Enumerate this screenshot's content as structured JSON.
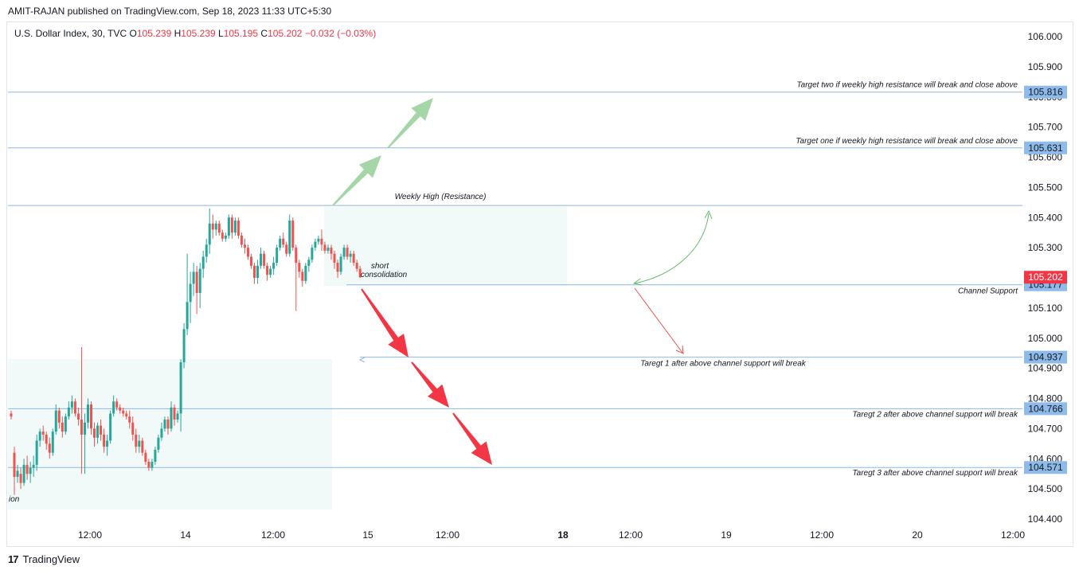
{
  "header": {
    "publisher": "AMIT-RAJAN published on TradingView.com, Sep 18, 2023 11:33 UTC+5:30"
  },
  "legend": {
    "symbol": "U.S. Dollar Index, 30, TVC",
    "o_label": "O",
    "o": "105.239",
    "h_label": "H",
    "h": "105.239",
    "l_label": "L",
    "l": "105.195",
    "c_label": "C",
    "c": "105.202",
    "change": "−0.032 (−0.03%)"
  },
  "footer": {
    "brand": "TradingView"
  },
  "colors": {
    "up": "#26a69a",
    "down": "#ef5350",
    "line": "#8fb8de",
    "tag_blue": "#8ebbe9",
    "tag_red": "#f23645",
    "arrow_green": "#a5d6a7",
    "arrow_red": "#f23645"
  },
  "chart_data": {
    "type": "candlestick",
    "y_ticks": [
      "106.000",
      "105.900",
      "105.800",
      "105.700",
      "105.600",
      "105.500",
      "105.400",
      "105.300",
      "105.200",
      "105.100",
      "105.000",
      "104.900",
      "104.800",
      "104.700",
      "104.600",
      "104.500",
      "104.400"
    ],
    "ylim": [
      104.4,
      106.0
    ],
    "x_ticks": [
      {
        "label": "12:00",
        "bold": false
      },
      {
        "label": "14",
        "bold": false
      },
      {
        "label": "12:00",
        "bold": false
      },
      {
        "label": "15",
        "bold": false
      },
      {
        "label": "12:00",
        "bold": false
      },
      {
        "label": "18",
        "bold": true
      },
      {
        "label": "12:00",
        "bold": false
      },
      {
        "label": "19",
        "bold": false
      },
      {
        "label": "12:00",
        "bold": false
      },
      {
        "label": "20",
        "bold": false
      },
      {
        "label": "12:00",
        "bold": false
      }
    ],
    "levels": [
      {
        "value": 105.816,
        "label": "105.816",
        "note": "Target two if weekly high resistance will break and close above"
      },
      {
        "value": 105.631,
        "label": "105.631",
        "note": "Target one if weekly high resistance will break and close above"
      },
      {
        "value": 105.44,
        "label": "",
        "note": "Weekly High (Resistance)"
      },
      {
        "value": 105.177,
        "label": "105.177",
        "note": "Channel Support"
      },
      {
        "value": 104.937,
        "label": "104.937",
        "note": "Taregt 1 after above channel support will break"
      },
      {
        "value": 104.766,
        "label": "104.766",
        "note": "Taregt 2 after above channel support will break"
      },
      {
        "value": 104.571,
        "label": "104.571",
        "note": "Taregt 3 after above channel support will break"
      }
    ],
    "last_price": {
      "value": 105.202,
      "label": "105.202"
    },
    "annotations": {
      "consolidation_line1": "short",
      "consolidation_line2": "consolidation",
      "left_box_label": "ion"
    },
    "candles": [
      {
        "o": 104.75,
        "h": 104.76,
        "l": 104.73,
        "c": 104.74
      },
      {
        "o": 104.62,
        "h": 104.64,
        "l": 104.48,
        "c": 104.54
      },
      {
        "o": 104.54,
        "h": 104.58,
        "l": 104.52,
        "c": 104.56
      },
      {
        "o": 104.55,
        "h": 104.57,
        "l": 104.5,
        "c": 104.52
      },
      {
        "o": 104.52,
        "h": 104.6,
        "l": 104.51,
        "c": 104.58
      },
      {
        "o": 104.58,
        "h": 104.61,
        "l": 104.53,
        "c": 104.55
      },
      {
        "o": 104.55,
        "h": 104.59,
        "l": 104.52,
        "c": 104.57
      },
      {
        "o": 104.57,
        "h": 104.61,
        "l": 104.54,
        "c": 104.58
      },
      {
        "o": 104.58,
        "h": 104.68,
        "l": 104.56,
        "c": 104.66
      },
      {
        "o": 104.66,
        "h": 104.7,
        "l": 104.64,
        "c": 104.69
      },
      {
        "o": 104.69,
        "h": 104.71,
        "l": 104.66,
        "c": 104.68
      },
      {
        "o": 104.68,
        "h": 104.69,
        "l": 104.63,
        "c": 104.65
      },
      {
        "o": 104.65,
        "h": 104.67,
        "l": 104.6,
        "c": 104.62
      },
      {
        "o": 104.62,
        "h": 104.7,
        "l": 104.61,
        "c": 104.69
      },
      {
        "o": 104.69,
        "h": 104.78,
        "l": 104.68,
        "c": 104.76
      },
      {
        "o": 104.76,
        "h": 104.77,
        "l": 104.7,
        "c": 104.72
      },
      {
        "o": 104.72,
        "h": 104.74,
        "l": 104.67,
        "c": 104.69
      },
      {
        "o": 104.69,
        "h": 104.75,
        "l": 104.68,
        "c": 104.74
      },
      {
        "o": 104.74,
        "h": 104.79,
        "l": 104.73,
        "c": 104.77
      },
      {
        "o": 104.77,
        "h": 104.81,
        "l": 104.75,
        "c": 104.79
      },
      {
        "o": 104.79,
        "h": 104.8,
        "l": 104.74,
        "c": 104.75
      },
      {
        "o": 104.75,
        "h": 104.77,
        "l": 104.71,
        "c": 104.73
      },
      {
        "o": 104.73,
        "h": 104.97,
        "l": 104.55,
        "c": 104.68
      },
      {
        "o": 104.68,
        "h": 104.75,
        "l": 104.55,
        "c": 104.72
      },
      {
        "o": 104.72,
        "h": 104.8,
        "l": 104.7,
        "c": 104.78
      },
      {
        "o": 104.78,
        "h": 104.79,
        "l": 104.68,
        "c": 104.7
      },
      {
        "o": 104.7,
        "h": 104.72,
        "l": 104.64,
        "c": 104.67
      },
      {
        "o": 104.67,
        "h": 104.72,
        "l": 104.65,
        "c": 104.71
      },
      {
        "o": 104.71,
        "h": 104.73,
        "l": 104.66,
        "c": 104.68
      },
      {
        "o": 104.68,
        "h": 104.7,
        "l": 104.62,
        "c": 104.64
      },
      {
        "o": 104.64,
        "h": 104.68,
        "l": 104.61,
        "c": 104.66
      },
      {
        "o": 104.66,
        "h": 104.76,
        "l": 104.65,
        "c": 104.75
      },
      {
        "o": 104.75,
        "h": 104.81,
        "l": 104.74,
        "c": 104.79
      },
      {
        "o": 104.79,
        "h": 104.8,
        "l": 104.76,
        "c": 104.77
      },
      {
        "o": 104.77,
        "h": 104.78,
        "l": 104.75,
        "c": 104.76
      },
      {
        "o": 104.76,
        "h": 104.77,
        "l": 104.74,
        "c": 104.75
      },
      {
        "o": 104.75,
        "h": 104.76,
        "l": 104.73,
        "c": 104.74
      },
      {
        "o": 104.74,
        "h": 104.76,
        "l": 104.7,
        "c": 104.72
      },
      {
        "o": 104.72,
        "h": 104.74,
        "l": 104.66,
        "c": 104.68
      },
      {
        "o": 104.68,
        "h": 104.7,
        "l": 104.62,
        "c": 104.64
      },
      {
        "o": 104.64,
        "h": 104.68,
        "l": 104.62,
        "c": 104.66
      },
      {
        "o": 104.66,
        "h": 104.67,
        "l": 104.61,
        "c": 104.62
      },
      {
        "o": 104.62,
        "h": 104.63,
        "l": 104.58,
        "c": 104.59
      },
      {
        "o": 104.59,
        "h": 104.6,
        "l": 104.56,
        "c": 104.57
      },
      {
        "o": 104.57,
        "h": 104.6,
        "l": 104.56,
        "c": 104.59
      },
      {
        "o": 104.59,
        "h": 104.64,
        "l": 104.58,
        "c": 104.63
      },
      {
        "o": 104.63,
        "h": 104.68,
        "l": 104.62,
        "c": 104.67
      },
      {
        "o": 104.67,
        "h": 104.72,
        "l": 104.66,
        "c": 104.7
      },
      {
        "o": 104.7,
        "h": 104.74,
        "l": 104.69,
        "c": 104.73
      },
      {
        "o": 104.73,
        "h": 104.74,
        "l": 104.68,
        "c": 104.7
      },
      {
        "o": 104.7,
        "h": 104.79,
        "l": 104.69,
        "c": 104.77
      },
      {
        "o": 104.77,
        "h": 104.78,
        "l": 104.71,
        "c": 104.73
      },
      {
        "o": 104.73,
        "h": 104.76,
        "l": 104.72,
        "c": 104.75
      },
      {
        "o": 104.75,
        "h": 104.93,
        "l": 104.69,
        "c": 104.92
      },
      {
        "o": 104.92,
        "h": 105.05,
        "l": 104.9,
        "c": 105.03
      },
      {
        "o": 105.03,
        "h": 105.28,
        "l": 105.01,
        "c": 105.12
      },
      {
        "o": 105.12,
        "h": 105.22,
        "l": 105.05,
        "c": 105.18
      },
      {
        "o": 105.18,
        "h": 105.25,
        "l": 105.14,
        "c": 105.22
      },
      {
        "o": 105.22,
        "h": 105.24,
        "l": 105.08,
        "c": 105.15
      },
      {
        "o": 105.15,
        "h": 105.25,
        "l": 105.1,
        "c": 105.23
      },
      {
        "o": 105.23,
        "h": 105.29,
        "l": 105.2,
        "c": 105.27
      },
      {
        "o": 105.27,
        "h": 105.33,
        "l": 105.25,
        "c": 105.31
      },
      {
        "o": 105.31,
        "h": 105.43,
        "l": 105.28,
        "c": 105.38
      },
      {
        "o": 105.38,
        "h": 105.41,
        "l": 105.33,
        "c": 105.36
      },
      {
        "o": 105.36,
        "h": 105.39,
        "l": 105.34,
        "c": 105.38
      },
      {
        "o": 105.38,
        "h": 105.39,
        "l": 105.34,
        "c": 105.35
      },
      {
        "o": 105.35,
        "h": 105.36,
        "l": 105.32,
        "c": 105.33
      },
      {
        "o": 105.33,
        "h": 105.35,
        "l": 105.32,
        "c": 105.34
      },
      {
        "o": 105.34,
        "h": 105.41,
        "l": 105.33,
        "c": 105.4
      },
      {
        "o": 105.4,
        "h": 105.41,
        "l": 105.33,
        "c": 105.35
      },
      {
        "o": 105.35,
        "h": 105.4,
        "l": 105.34,
        "c": 105.39
      },
      {
        "o": 105.39,
        "h": 105.4,
        "l": 105.33,
        "c": 105.34
      },
      {
        "o": 105.34,
        "h": 105.35,
        "l": 105.3,
        "c": 105.31
      },
      {
        "o": 105.31,
        "h": 105.33,
        "l": 105.28,
        "c": 105.3
      },
      {
        "o": 105.3,
        "h": 105.31,
        "l": 105.26,
        "c": 105.27
      },
      {
        "o": 105.27,
        "h": 105.28,
        "l": 105.23,
        "c": 105.24
      },
      {
        "o": 105.24,
        "h": 105.25,
        "l": 105.18,
        "c": 105.2
      },
      {
        "o": 105.2,
        "h": 105.26,
        "l": 105.18,
        "c": 105.24
      },
      {
        "o": 105.24,
        "h": 105.3,
        "l": 105.23,
        "c": 105.28
      },
      {
        "o": 105.28,
        "h": 105.29,
        "l": 105.23,
        "c": 105.24
      },
      {
        "o": 105.24,
        "h": 105.25,
        "l": 105.19,
        "c": 105.21
      },
      {
        "o": 105.21,
        "h": 105.24,
        "l": 105.2,
        "c": 105.23
      },
      {
        "o": 105.23,
        "h": 105.27,
        "l": 105.21,
        "c": 105.25
      },
      {
        "o": 105.25,
        "h": 105.31,
        "l": 105.24,
        "c": 105.3
      },
      {
        "o": 105.3,
        "h": 105.34,
        "l": 105.29,
        "c": 105.33
      },
      {
        "o": 105.33,
        "h": 105.35,
        "l": 105.3,
        "c": 105.31
      },
      {
        "o": 105.31,
        "h": 105.32,
        "l": 105.27,
        "c": 105.28
      },
      {
        "o": 105.28,
        "h": 105.41,
        "l": 105.27,
        "c": 105.39
      },
      {
        "o": 105.39,
        "h": 105.4,
        "l": 105.29,
        "c": 105.3
      },
      {
        "o": 105.3,
        "h": 105.31,
        "l": 105.09,
        "c": 105.25
      },
      {
        "o": 105.25,
        "h": 105.26,
        "l": 105.2,
        "c": 105.22
      },
      {
        "o": 105.22,
        "h": 105.23,
        "l": 105.17,
        "c": 105.19
      },
      {
        "o": 105.19,
        "h": 105.25,
        "l": 105.18,
        "c": 105.24
      },
      {
        "o": 105.24,
        "h": 105.27,
        "l": 105.22,
        "c": 105.26
      },
      {
        "o": 105.26,
        "h": 105.31,
        "l": 105.25,
        "c": 105.3
      },
      {
        "o": 105.3,
        "h": 105.33,
        "l": 105.29,
        "c": 105.32
      },
      {
        "o": 105.32,
        "h": 105.34,
        "l": 105.31,
        "c": 105.33
      },
      {
        "o": 105.33,
        "h": 105.36,
        "l": 105.29,
        "c": 105.31
      },
      {
        "o": 105.31,
        "h": 105.32,
        "l": 105.28,
        "c": 105.29
      },
      {
        "o": 105.29,
        "h": 105.31,
        "l": 105.28,
        "c": 105.3
      },
      {
        "o": 105.3,
        "h": 105.31,
        "l": 105.26,
        "c": 105.28
      },
      {
        "o": 105.28,
        "h": 105.29,
        "l": 105.23,
        "c": 105.25
      },
      {
        "o": 105.25,
        "h": 105.26,
        "l": 105.2,
        "c": 105.22
      },
      {
        "o": 105.22,
        "h": 105.28,
        "l": 105.21,
        "c": 105.27
      },
      {
        "o": 105.27,
        "h": 105.31,
        "l": 105.26,
        "c": 105.3
      },
      {
        "o": 105.3,
        "h": 105.31,
        "l": 105.26,
        "c": 105.27
      },
      {
        "o": 105.27,
        "h": 105.29,
        "l": 105.25,
        "c": 105.28
      },
      {
        "o": 105.28,
        "h": 105.29,
        "l": 105.24,
        "c": 105.25
      },
      {
        "o": 105.25,
        "h": 105.26,
        "l": 105.22,
        "c": 105.23
      },
      {
        "o": 105.23,
        "h": 105.24,
        "l": 105.2,
        "c": 105.202
      }
    ]
  }
}
